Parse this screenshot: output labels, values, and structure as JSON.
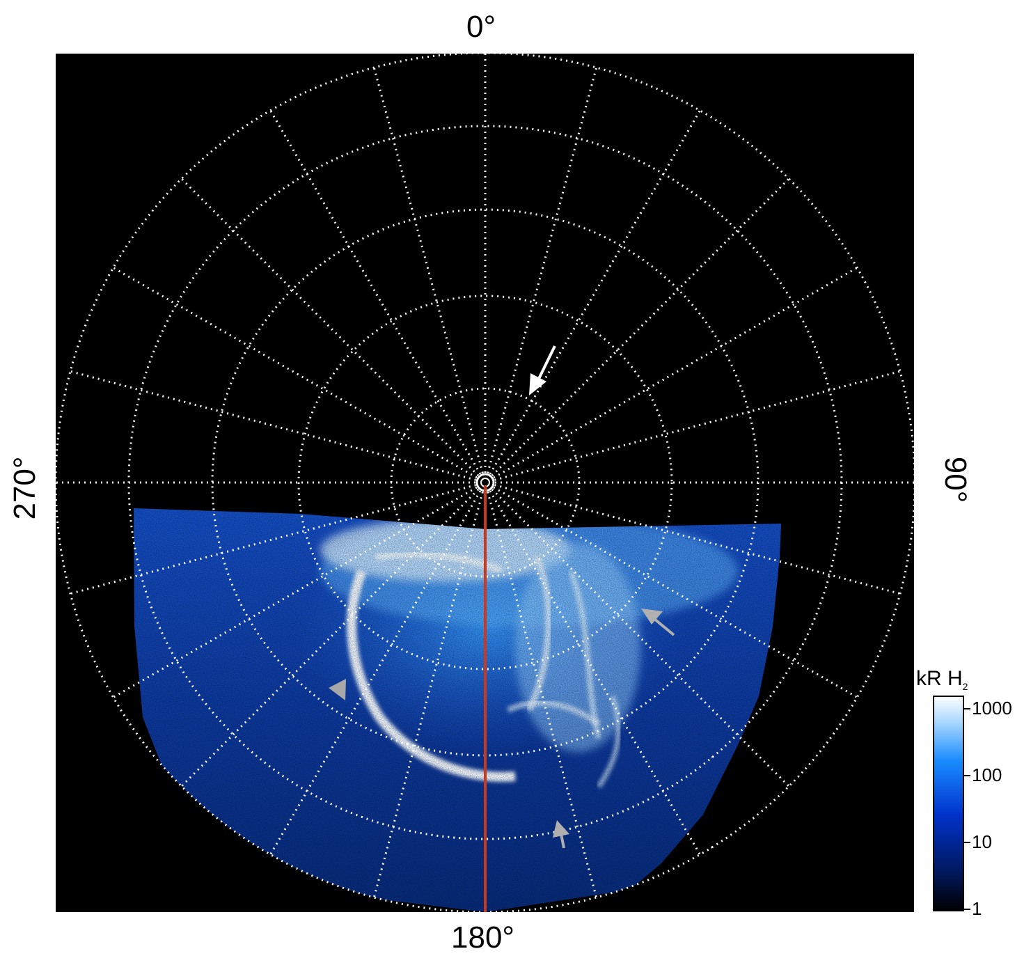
{
  "projection": {
    "labels": {
      "top": "0°",
      "right": "90°",
      "bottom": "180°",
      "left": "270°"
    },
    "background_color": "#000000",
    "grid_color": "#ffffff",
    "meridian_line_color": "#c8391e",
    "latitude_rings": 6,
    "longitude_spokes": 24
  },
  "aurora": {
    "colormap": [
      "#000000",
      "#001a66",
      "#0033cc",
      "#1a8cff",
      "#cce9ff",
      "#ffffff"
    ],
    "main_oval_color": "#f2f8ff"
  },
  "arrows": [
    {
      "name": "white-arrow",
      "color": "#ffffff"
    },
    {
      "name": "gray-arrow-right",
      "color": "#b0b0b0"
    },
    {
      "name": "gray-arrow-left",
      "color": "#a8a8a8"
    },
    {
      "name": "gray-arrow-bottom",
      "color": "#b0b0b0"
    }
  ],
  "colorbar": {
    "title": "kR H",
    "title_sub": "2",
    "ticks": [
      "1000",
      "100",
      "10",
      "1"
    ]
  }
}
